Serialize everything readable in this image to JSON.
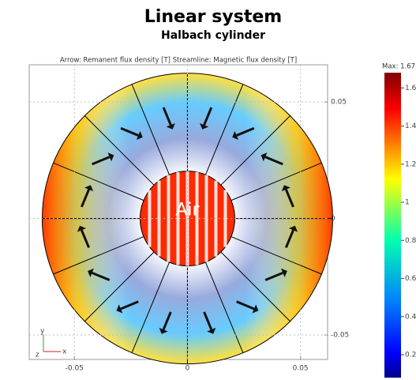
{
  "chart_data": {
    "type": "field",
    "title": "Linear system",
    "subtitle": "Halbach cylinder",
    "plot_title": "Arrow: Remanent flux density [T]   Streamline: Magnetic flux density [T]",
    "annotation": "Air",
    "triad_labels": [
      "y",
      "z",
      "x"
    ],
    "xlim": [
      -0.07,
      0.062
    ],
    "ylim": [
      -0.0605,
      0.066
    ],
    "xticks": [
      -0.05,
      0,
      0.05
    ],
    "yticks": [
      -0.05,
      0,
      0.05
    ],
    "colorbar": {
      "label": "Max: 1.67",
      "lim": [
        0.08,
        1.68
      ],
      "ticks": [
        0.2,
        0.4,
        0.6,
        0.8,
        1,
        1.2,
        1.4,
        1.6
      ]
    }
  }
}
